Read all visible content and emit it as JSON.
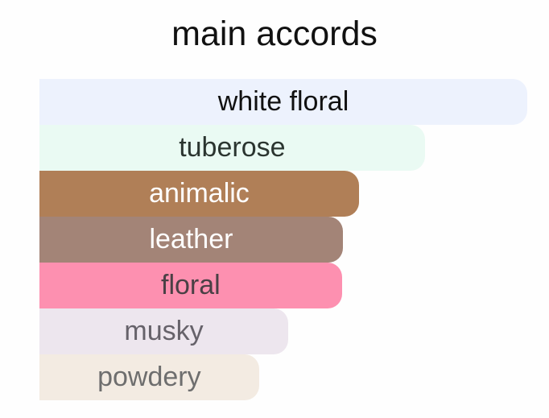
{
  "chart_data": {
    "type": "bar",
    "orientation": "horizontal",
    "title": "main accords",
    "categories": [
      "white floral",
      "tuberose",
      "animalic",
      "leather",
      "floral",
      "musky",
      "powdery"
    ],
    "values": [
      100,
      79,
      65.5,
      62.2,
      62,
      51,
      45
    ],
    "xlim": [
      0,
      100
    ],
    "grid": false,
    "colors": [
      "#edf2fd",
      "#eafaf3",
      "#b07f57",
      "#a38477",
      "#fd90b0",
      "#ede6ee",
      "#f3ebe2"
    ],
    "text_colors": [
      "#111111",
      "#2b3530",
      "#ffffff",
      "#ffffff",
      "#4a4045",
      "#66626a",
      "#6e6e6e"
    ]
  }
}
